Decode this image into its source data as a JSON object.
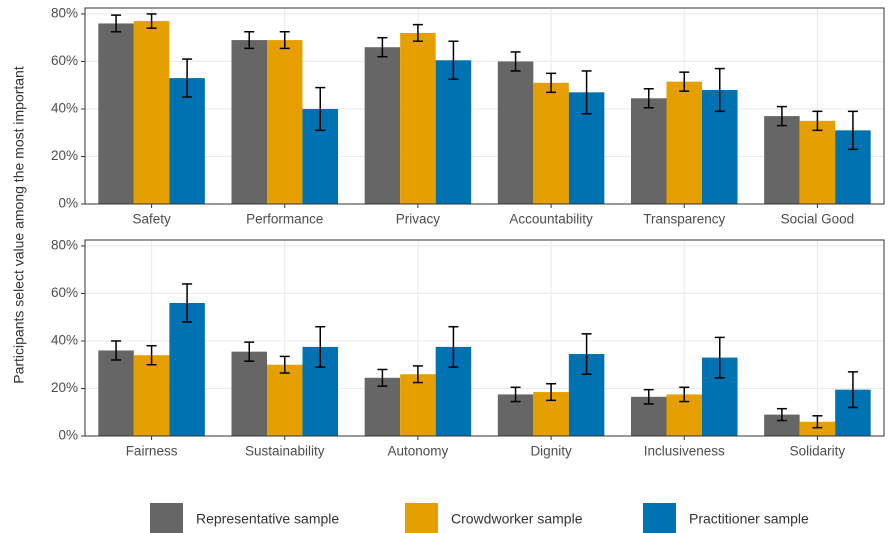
{
  "ylabel": "Participants select value among the most important",
  "chart_data": [
    {
      "type": "bar",
      "categories": [
        "Safety",
        "Performance",
        "Privacy",
        "Accountability",
        "Transparency",
        "Social Good"
      ],
      "series": [
        {
          "name": "Representative sample",
          "color": "#666666",
          "values": [
            76,
            69,
            66,
            60,
            44.5,
            37
          ],
          "errors": [
            3.5,
            3.5,
            4,
            4,
            4,
            4
          ]
        },
        {
          "name": "Crowdworker sample",
          "color": "#e69f00",
          "values": [
            77,
            69,
            72,
            51,
            51.5,
            35
          ],
          "errors": [
            3,
            3.5,
            3.5,
            4,
            4,
            4
          ]
        },
        {
          "name": "Practitioner sample",
          "color": "#0072b2",
          "values": [
            53,
            40,
            60.5,
            47,
            48,
            31
          ],
          "errors": [
            8,
            9,
            8,
            9,
            9,
            8
          ]
        }
      ],
      "ylim": [
        0,
        82.5
      ],
      "yticks": [
        {
          "value": 0,
          "label": "0%"
        },
        {
          "value": 20,
          "label": "20%"
        },
        {
          "value": 40,
          "label": "40%"
        },
        {
          "value": 60,
          "label": "60%"
        },
        {
          "value": 80,
          "label": "80%"
        }
      ],
      "grid": true
    },
    {
      "type": "bar",
      "categories": [
        "Fairness",
        "Sustainability",
        "Autonomy",
        "Dignity",
        "Inclusiveness",
        "Solidarity"
      ],
      "series": [
        {
          "color": "#666666",
          "values": [
            36,
            35.5,
            24.5,
            17.5,
            16.5,
            9
          ],
          "errors": [
            4,
            4,
            3.5,
            3,
            3,
            2.5
          ]
        },
        {
          "color": "#e69f00",
          "values": [
            34,
            30,
            26,
            18.5,
            17.5,
            6
          ],
          "errors": [
            4,
            3.5,
            3.5,
            3.5,
            3,
            2.5
          ]
        },
        {
          "color": "#0072b2",
          "values": [
            56,
            37.5,
            37.5,
            34.5,
            33,
            19.5
          ],
          "errors": [
            8,
            8.5,
            8.5,
            8.5,
            8.5,
            7.5
          ]
        }
      ],
      "ylim": [
        0,
        82.5
      ],
      "yticks": [
        {
          "value": 0,
          "label": "0%"
        },
        {
          "value": 20,
          "label": "20%"
        },
        {
          "value": 40,
          "label": "40%"
        },
        {
          "value": 60,
          "label": "60%"
        },
        {
          "value": 80,
          "label": "80%"
        }
      ],
      "grid": true
    }
  ]
}
